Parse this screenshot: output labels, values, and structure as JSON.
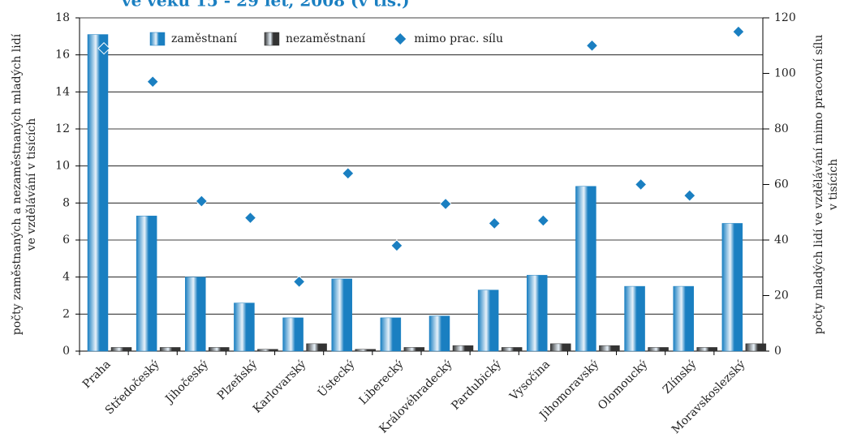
{
  "chart_data": {
    "type": "bar",
    "title": "ve věku 15 - 29 let, 2008 (v tis.)",
    "y_label": [
      "počty zaměstnaných a nezaměstnaných mladých lidí",
      "ve vzdělávání v tisících"
    ],
    "y2_label": [
      "počty mladých lidí ve vzdělávání mimo pracovní sílu",
      "v tisících"
    ],
    "categories": [
      "Praha",
      "Středočeský",
      "Jihočeský",
      "Plzeňský",
      "Karlovarský",
      "Ústecký",
      "Liberecký",
      "Královéhradecký",
      "Pardubický",
      "Vysočina",
      "Jihomoravský",
      "Olomoucký",
      "Zlínský",
      "Moravskoslezský"
    ],
    "series": [
      {
        "name": "zaměstnaní",
        "color": "#1a7fc1",
        "type": "bar",
        "values": [
          17.1,
          7.3,
          4.0,
          2.6,
          1.8,
          3.9,
          1.8,
          1.9,
          3.3,
          4.1,
          8.9,
          3.5,
          3.5,
          6.9
        ]
      },
      {
        "name": "nezaměstnaní",
        "color": "#333333",
        "type": "bar",
        "values": [
          0.2,
          0.2,
          0.2,
          0.1,
          0.4,
          0.1,
          0.2,
          0.3,
          0.2,
          0.4,
          0.3,
          0.2,
          0.2,
          0.4
        ]
      },
      {
        "name": "mimo prac. sílu",
        "color": "#1a7fc1",
        "type": "scatter",
        "axis": "y2",
        "values": [
          109,
          97,
          54,
          48,
          25,
          64,
          38,
          53,
          46,
          47,
          110,
          60,
          56,
          115
        ]
      }
    ],
    "ylim": [
      0,
      18
    ],
    "yticks": [
      0,
      2,
      4,
      6,
      8,
      10,
      12,
      14,
      16,
      18
    ],
    "y2lim": [
      0,
      120
    ],
    "y2ticks": [
      0,
      20,
      40,
      60,
      80,
      100,
      120
    ],
    "grid": true,
    "legend": "top"
  }
}
